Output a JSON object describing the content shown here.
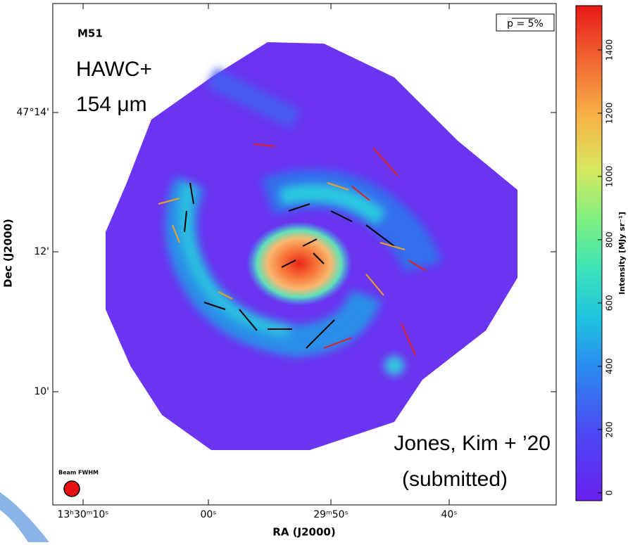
{
  "chart_data": {
    "type": "image",
    "object": "M51",
    "instrument": "HAWC+",
    "wavelength": "154 μm",
    "credit": "Jones, Kim + ’20",
    "status": "(submitted)",
    "pol_scale": "p = 5%",
    "beam_label": "Beam FWHM",
    "xlabel": "RA (J2000)",
    "ylabel": "Dec (J2000)",
    "xtick_labels": [
      "13ʰ30ᵐ10ˢ",
      "00ˢ",
      "29ᵐ50ˢ",
      "40ˢ"
    ],
    "ytick_labels": [
      "47°14'",
      "12'",
      "10'"
    ],
    "colorbar": {
      "label": "Intensity [MJy sr⁻¹]",
      "lim": [
        -25,
        1540
      ],
      "ticks": [
        0,
        200,
        400,
        600,
        800,
        1000,
        1200,
        1400
      ]
    }
  }
}
